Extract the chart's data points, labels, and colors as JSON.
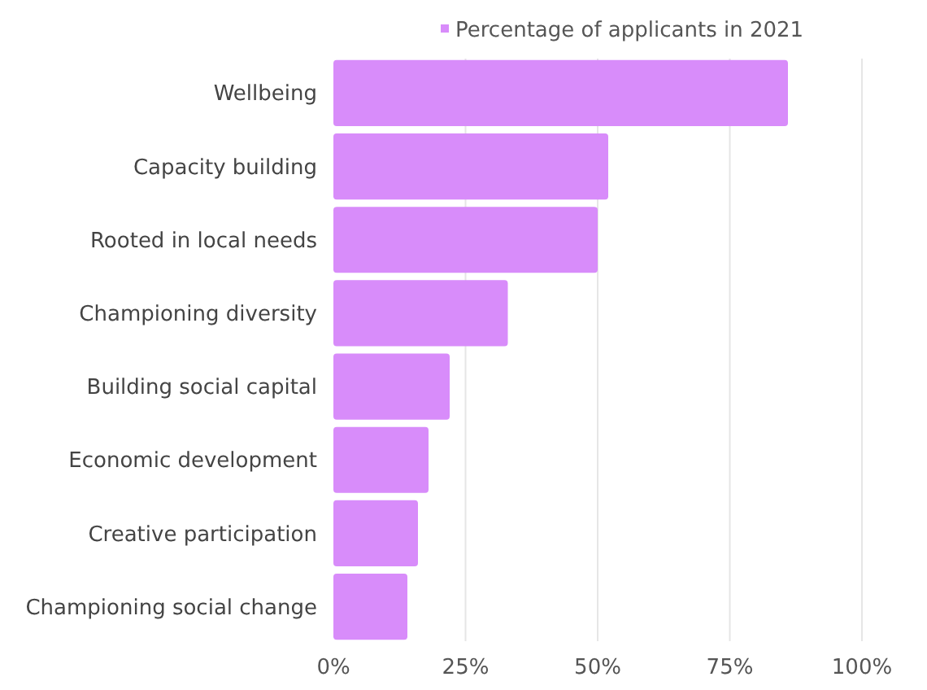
{
  "chart_data": {
    "type": "bar",
    "orientation": "horizontal",
    "categories": [
      "Wellbeing",
      "Capacity building",
      "Rooted in local needs",
      "Championing diversity",
      "Building social capital",
      "Economic development",
      "Creative participation",
      "Championing social change"
    ],
    "series": [
      {
        "name": "Percentage of applicants in 2021",
        "color": "#d88cfa",
        "values": [
          86,
          52,
          50,
          33,
          22,
          18,
          16,
          14
        ]
      }
    ],
    "xlim": [
      0,
      100
    ],
    "xticks": [
      {
        "value": 0,
        "label": "0%"
      },
      {
        "value": 25,
        "label": "25%"
      },
      {
        "value": 50,
        "label": "50%"
      },
      {
        "value": 75,
        "label": "75%"
      },
      {
        "value": 100,
        "label": "100%"
      }
    ],
    "grid": "x",
    "legend": "top"
  }
}
